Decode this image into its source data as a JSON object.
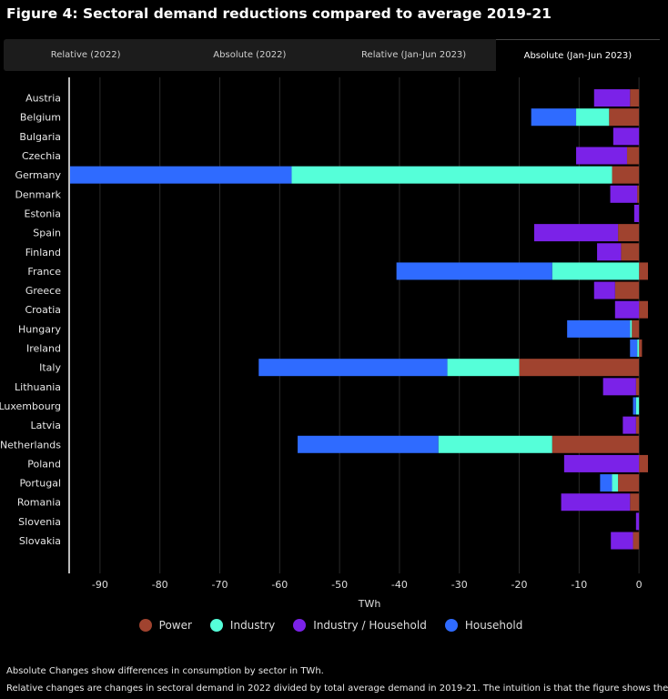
{
  "title": "Figure 4: Sectoral demand reductions compared to average 2019-21",
  "tabs": [
    {
      "label": "Relative (2022)",
      "active": false
    },
    {
      "label": "Absolute (2022)",
      "active": false
    },
    {
      "label": "Relative (Jan-Jun 2023)",
      "active": false
    },
    {
      "label": "Absolute (Jan-Jun 2023)",
      "active": true
    }
  ],
  "notes": {
    "line1": "Absolute Changes show differences in consumption by sector in TWh.",
    "line2": "Relative changes are changes in sectoral demand in 2022 divided by total average demand in 2019-21. The intuition is that the figure shows the"
  },
  "chart_data": {
    "type": "bar",
    "orientation": "horizontal",
    "stacked": true,
    "xlabel": "TWh",
    "xlim": [
      -95,
      1.5
    ],
    "xticks": [
      -90,
      -80,
      -70,
      -60,
      -50,
      -40,
      -30,
      -20,
      -10,
      0
    ],
    "grid": true,
    "legend_position": "bottom",
    "categories": [
      "Austria",
      "Belgium",
      "Bulgaria",
      "Czechia",
      "Germany",
      "Denmark",
      "Estonia",
      "Spain",
      "Finland",
      "France",
      "Greece",
      "Croatia",
      "Hungary",
      "Ireland",
      "Italy",
      "Lithuania",
      "Luxembourg",
      "Latvia",
      "Netherlands",
      "Poland",
      "Portugal",
      "Romania",
      "Slovenia",
      "Slovakia"
    ],
    "series": [
      {
        "name": "Power",
        "color": "#a0432f",
        "values": [
          -1.5,
          -5,
          0,
          -2,
          -4.5,
          -0.3,
          0,
          -3.5,
          -3,
          1.5,
          -4,
          1.5,
          -1.2,
          0.5,
          -20,
          -0.5,
          0,
          -0.5,
          -14.5,
          1.5,
          -3.5,
          -1.5,
          0,
          -1
        ]
      },
      {
        "name": "Industry",
        "color": "#55ffd9",
        "values": [
          0,
          -5.5,
          0,
          0,
          -53.5,
          0,
          0,
          0,
          0,
          -14.5,
          0,
          0,
          -0.3,
          -0.3,
          -12,
          0,
          -0.5,
          0,
          -19,
          0,
          -1,
          0,
          0,
          0
        ]
      },
      {
        "name": "Industry / Household",
        "color": "#7b22e8",
        "values": [
          -6,
          0,
          -4.3,
          -8.5,
          0,
          -4.5,
          -0.8,
          -14,
          -4,
          0,
          -3.5,
          -4,
          0,
          0,
          0,
          -5.5,
          0,
          -2.2,
          0,
          -12.5,
          0,
          -11.5,
          -0.5,
          -3.7
        ]
      },
      {
        "name": "Household",
        "color": "#2f6bff",
        "values": [
          0,
          -7.5,
          0,
          0,
          -37,
          0,
          0,
          0,
          0,
          -26,
          0,
          0,
          -10.5,
          -1.2,
          -31.5,
          0,
          -0.5,
          0,
          -23.5,
          0,
          -2,
          0,
          0,
          0
        ]
      }
    ]
  }
}
